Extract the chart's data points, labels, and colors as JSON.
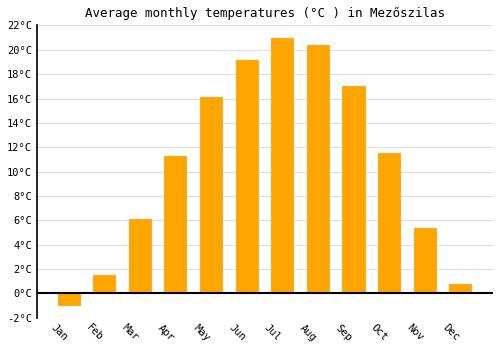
{
  "title": "Average monthly temperatures (°C ) in Mezőszilas",
  "months": [
    "Jan",
    "Feb",
    "Mar",
    "Apr",
    "May",
    "Jun",
    "Jul",
    "Aug",
    "Sep",
    "Oct",
    "Nov",
    "Dec"
  ],
  "values": [
    -1.0,
    1.5,
    6.1,
    11.3,
    16.1,
    19.2,
    21.0,
    20.4,
    17.0,
    11.5,
    5.4,
    0.8
  ],
  "bar_color": "#FFA500",
  "background_color": "#ffffff",
  "plot_bg_color": "#ffffff",
  "grid_color": "#dddddd",
  "ylim": [
    -2,
    22
  ],
  "yticks": [
    -2,
    0,
    2,
    4,
    6,
    8,
    10,
    12,
    14,
    16,
    18,
    20,
    22
  ],
  "ytick_labels": [
    "-2°C",
    "0°C",
    "2°C",
    "4°C",
    "6°C",
    "8°C",
    "10°C",
    "12°C",
    "14°C",
    "16°C",
    "18°C",
    "20°C",
    "22°C"
  ],
  "title_fontsize": 9,
  "tick_fontsize": 7.5,
  "bar_width": 0.65,
  "xlabel_rotation": -45
}
